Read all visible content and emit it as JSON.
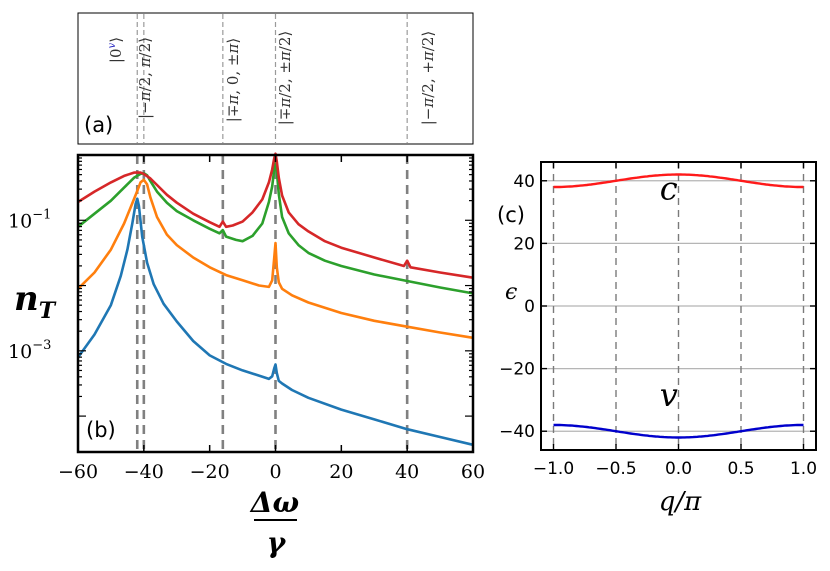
{
  "chart_data": [
    {
      "panel": "a",
      "type": "annotation",
      "label": "(a)",
      "markers": [
        {
          "x": -42,
          "text": "|0",
          "sup": "v",
          "close": "⟩",
          "color": "#1f1fbf"
        },
        {
          "x": -40,
          "text": "|−π/2, π/2⟩",
          "sup": "v v",
          "color": "#1f1fbf"
        },
        {
          "x": -16,
          "text": "|∓π, 0, ±π⟩",
          "sup": "v v c",
          "color": "#333333"
        },
        {
          "x": 0,
          "text": "|∓π/2, ±π/2⟩",
          "sup": "v c",
          "color": "#333333"
        },
        {
          "x": 40,
          "text": "|−π/2, +π/2⟩",
          "sup": "c c",
          "color": "#333333"
        }
      ]
    },
    {
      "panel": "b",
      "type": "line",
      "label": "(b)",
      "xlabel_num": "Δω",
      "xlabel_den": "γ",
      "ylabel": "n",
      "ylabel_sub": "T",
      "yscale": "log",
      "xlim": [
        -60,
        60
      ],
      "ylim_log10": [
        -4.55,
        0.0
      ],
      "xticks": [
        -60,
        -40,
        -20,
        0,
        20,
        40,
        60
      ],
      "xtick_labels": [
        "−60",
        "−40",
        "−20",
        "0",
        "20",
        "40",
        "60"
      ],
      "yticks_log10": [
        -1,
        -3
      ],
      "ytick_labels": [
        "10",
        "10"
      ],
      "ytick_exps": [
        "−1",
        "−3"
      ],
      "vlines": [
        -42,
        -40,
        -16,
        0,
        40
      ],
      "series": [
        {
          "name": "blue",
          "color": "#1f77b4",
          "x": [
            -60,
            -55,
            -50,
            -47,
            -45,
            -43.5,
            -42.5,
            -42,
            -41.5,
            -40.5,
            -39,
            -37,
            -34,
            -30,
            -25,
            -20,
            -15,
            -10,
            -5,
            -2,
            -1,
            -0.4,
            0,
            0.4,
            1,
            2,
            5,
            10,
            20,
            30,
            40,
            50,
            60
          ],
          "y": [
            -3.1,
            -2.75,
            -2.3,
            -1.85,
            -1.45,
            -1.05,
            -0.75,
            -0.67,
            -0.78,
            -1.25,
            -1.65,
            -1.98,
            -2.28,
            -2.55,
            -2.85,
            -3.07,
            -3.2,
            -3.3,
            -3.38,
            -3.43,
            -3.39,
            -3.27,
            -3.21,
            -3.34,
            -3.46,
            -3.5,
            -3.6,
            -3.72,
            -3.9,
            -4.05,
            -4.2,
            -4.32,
            -4.44
          ]
        },
        {
          "name": "orange",
          "color": "#ff7f0e",
          "x": [
            -60,
            -55,
            -50,
            -46,
            -44,
            -42,
            -41,
            -40,
            -39,
            -38,
            -36,
            -33,
            -30,
            -25,
            -20,
            -15,
            -10,
            -5,
            -2,
            -1,
            -0.4,
            0,
            0.4,
            1,
            2,
            5,
            10,
            20,
            30,
            40,
            50,
            60
          ],
          "y": [
            -2.05,
            -1.8,
            -1.45,
            -1.05,
            -0.8,
            -0.55,
            -0.42,
            -0.38,
            -0.45,
            -0.65,
            -0.95,
            -1.22,
            -1.38,
            -1.57,
            -1.72,
            -1.84,
            -1.92,
            -2.0,
            -2.02,
            -1.92,
            -1.58,
            -1.35,
            -1.72,
            -1.95,
            -2.05,
            -2.15,
            -2.26,
            -2.42,
            -2.54,
            -2.63,
            -2.72,
            -2.8
          ]
        },
        {
          "name": "green",
          "color": "#2ca02c",
          "x": [
            -60,
            -55,
            -50,
            -46,
            -43,
            -41,
            -40,
            -39,
            -38,
            -36,
            -33,
            -30,
            -25,
            -20,
            -17,
            -16,
            -15,
            -12,
            -10,
            -7,
            -4,
            -2,
            -1,
            -0.4,
            0,
            0.4,
            1,
            2,
            4,
            7,
            10,
            15,
            20,
            30,
            40,
            50,
            60
          ],
          "y": [
            -1.1,
            -0.9,
            -0.7,
            -0.5,
            -0.35,
            -0.29,
            -0.28,
            -0.31,
            -0.4,
            -0.56,
            -0.73,
            -0.86,
            -1.0,
            -1.13,
            -1.2,
            -1.15,
            -1.25,
            -1.3,
            -1.32,
            -1.24,
            -1.05,
            -0.72,
            -0.48,
            -0.22,
            -0.08,
            -0.25,
            -0.6,
            -0.95,
            -1.2,
            -1.38,
            -1.5,
            -1.62,
            -1.7,
            -1.83,
            -1.93,
            -2.03,
            -2.12
          ]
        },
        {
          "name": "red",
          "color": "#d62728",
          "x": [
            -60,
            -55,
            -50,
            -46,
            -43,
            -41,
            -40,
            -38,
            -36,
            -33,
            -30,
            -25,
            -20,
            -17,
            -16,
            -15,
            -13,
            -10,
            -7,
            -4,
            -2,
            -1,
            -0.4,
            0,
            0.4,
            1,
            2,
            4,
            7,
            10,
            15,
            20,
            30,
            39,
            40,
            41,
            50,
            60
          ],
          "y": [
            -0.72,
            -0.56,
            -0.42,
            -0.32,
            -0.27,
            -0.27,
            -0.29,
            -0.36,
            -0.46,
            -0.61,
            -0.73,
            -0.9,
            -1.03,
            -1.1,
            -1.02,
            -1.1,
            -1.08,
            -1.02,
            -0.88,
            -0.68,
            -0.42,
            -0.22,
            -0.05,
            0.02,
            -0.1,
            -0.35,
            -0.62,
            -0.88,
            -1.06,
            -1.17,
            -1.32,
            -1.42,
            -1.57,
            -1.7,
            -1.62,
            -1.72,
            -1.8,
            -1.88
          ]
        }
      ]
    },
    {
      "panel": "c",
      "type": "line",
      "label": "(c)",
      "xlabel": "q/π",
      "ylabel": "ϵ",
      "xlim": [
        -1.1,
        1.1
      ],
      "ylim": [
        -46,
        46
      ],
      "xticks": [
        -1.0,
        -0.5,
        0.0,
        0.5,
        1.0
      ],
      "xtick_labels": [
        "−1.0",
        "−0.5",
        "0.0",
        "0.5",
        "1.0"
      ],
      "yticks": [
        40,
        20,
        0,
        -20,
        -40
      ],
      "ytick_labels": [
        "40",
        "20",
        "0",
        "−20",
        "−40"
      ],
      "hgrid": [
        40,
        20,
        0,
        -20,
        -40
      ],
      "vlines": [
        -1.0,
        -0.5,
        0.0,
        0.5,
        1.0
      ],
      "series": [
        {
          "name": "c",
          "color": "#ff1a1a",
          "center": 40,
          "amplitude": 2,
          "sign": 1
        },
        {
          "name": "v",
          "color": "#0000cc",
          "center": -40,
          "amplitude": 2,
          "sign": -1
        }
      ],
      "band_labels": [
        {
          "text": "c",
          "color": "#ff1a1a",
          "x": -0.15,
          "y": 34
        },
        {
          "text": "v",
          "color": "#0000cc",
          "x": -0.15,
          "y": -32
        }
      ]
    }
  ]
}
